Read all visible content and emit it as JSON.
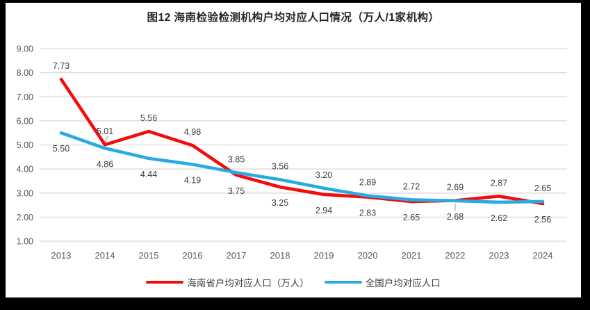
{
  "title": "图12  海南检验检测机构户均对应人口情况（万人/1家机构）",
  "chart_data": {
    "type": "line",
    "categories": [
      "2013",
      "2014",
      "2015",
      "2016",
      "2017",
      "2018",
      "2019",
      "2020",
      "2021",
      "2022",
      "2023",
      "2024"
    ],
    "series": [
      {
        "name": "海南省户均对应人口（万人）",
        "color": "#f40b0b",
        "values": [
          7.73,
          5.01,
          5.56,
          4.98,
          3.75,
          3.25,
          2.94,
          2.83,
          2.65,
          2.69,
          2.87,
          2.56
        ],
        "label_side": [
          "above",
          "above",
          "above",
          "above",
          "below",
          "below",
          "below",
          "below",
          "below",
          "above",
          "above",
          "below"
        ]
      },
      {
        "name": "全国户均对应人口",
        "color": "#29abe2",
        "values": [
          5.5,
          4.86,
          4.44,
          4.19,
          3.85,
          3.56,
          3.2,
          2.89,
          2.72,
          2.68,
          2.62,
          2.65
        ],
        "label_side": [
          "below",
          "below",
          "below",
          "below",
          "above",
          "above",
          "above",
          "above",
          "above",
          "below",
          "below",
          "above"
        ]
      }
    ],
    "ylim": [
      1.0,
      9.0
    ],
    "ytick_step": 1.0,
    "ytick_labels": [
      "1.00",
      "2.00",
      "3.00",
      "4.00",
      "5.00",
      "6.00",
      "7.00",
      "8.00",
      "9.00"
    ],
    "xlabel": "",
    "ylabel": "",
    "grid": true,
    "grid_color": "#d9d9d9",
    "tick_color": "#595959",
    "data_label_color": "#404040",
    "legend_position": "bottom",
    "leader_lines": [
      {
        "series": 0,
        "index": 1
      },
      {
        "series": 1,
        "index": 9
      }
    ]
  },
  "frame": {
    "border_color": "#000000"
  }
}
